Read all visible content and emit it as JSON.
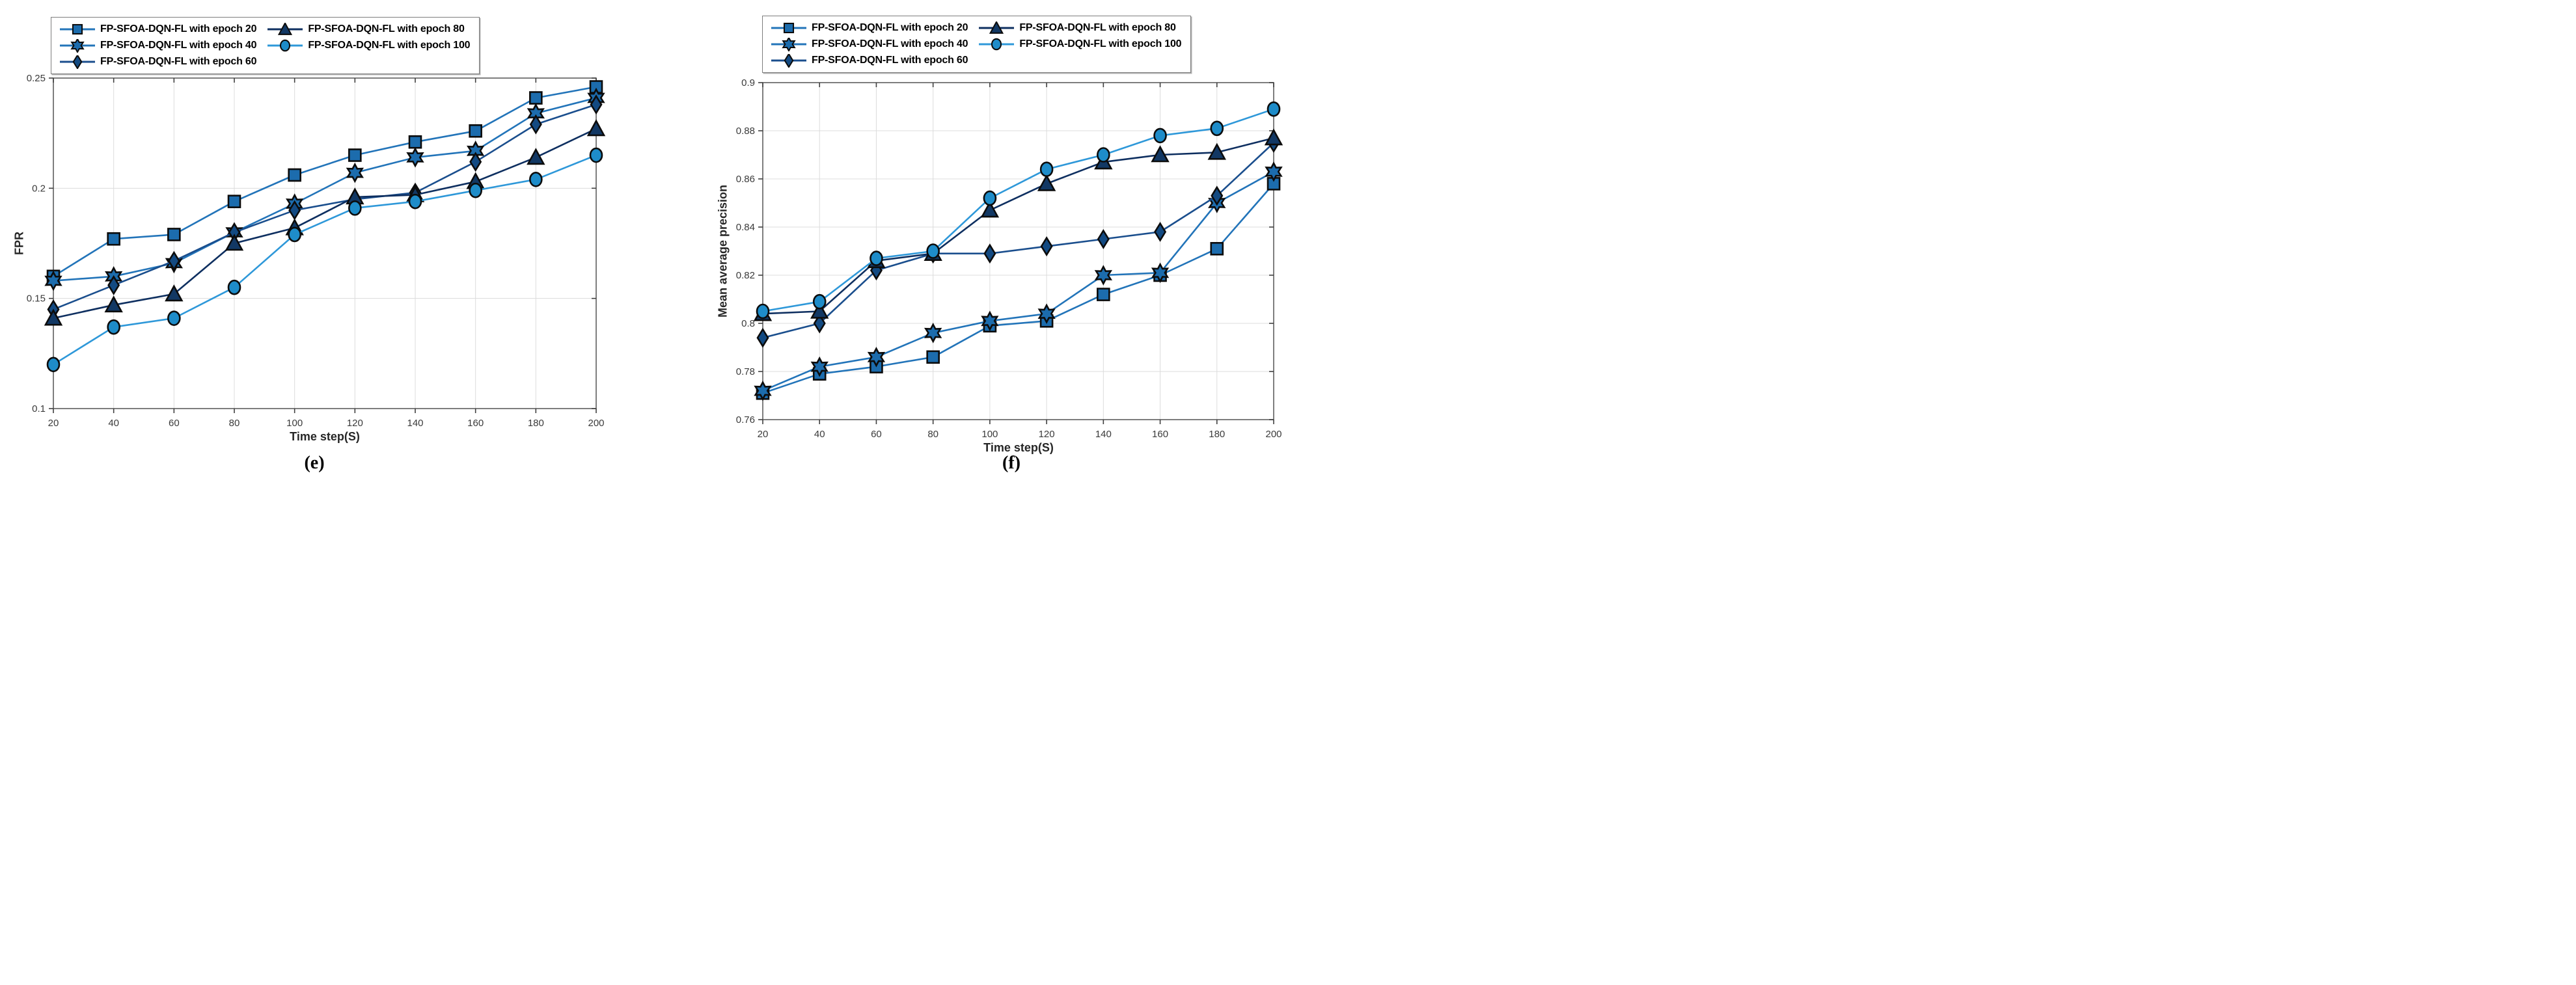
{
  "page": {
    "background": "#ffffff"
  },
  "legend": {
    "items": [
      {
        "label": "FP-SFOA-DQN-FL with epoch 20",
        "marker": "square",
        "line_color": "#2274b9",
        "marker_fill": "#1c6cad"
      },
      {
        "label": "FP-SFOA-DQN-FL with epoch 40",
        "marker": "hexagram",
        "line_color": "#2274b9",
        "marker_fill": "#1c6cad"
      },
      {
        "label": "FP-SFOA-DQN-FL with epoch 60",
        "marker": "diamond",
        "line_color": "#1a4e8d",
        "marker_fill": "#134a82"
      },
      {
        "label": "FP-SFOA-DQN-FL with epoch 80",
        "marker": "triangle",
        "line_color": "#0e2f60",
        "marker_fill": "#123864"
      },
      {
        "label": "FP-SFOA-DQN-FL with epoch 100",
        "marker": "circle",
        "line_color": "#2e98d9",
        "marker_fill": "#1e8cc9"
      }
    ]
  },
  "chart_data": [
    {
      "id": "e",
      "type": "line",
      "caption": "(e)",
      "title": "",
      "xlabel": "Time step(S)",
      "ylabel": "FPR",
      "x": [
        20,
        40,
        60,
        80,
        100,
        120,
        140,
        160,
        180,
        200
      ],
      "xlim": [
        20,
        200
      ],
      "ylim": [
        0.1,
        0.25
      ],
      "xtick_labels": [
        "20",
        "40",
        "60",
        "80",
        "100",
        "120",
        "140",
        "160",
        "180",
        "200"
      ],
      "yticks": [
        0.1,
        0.15,
        0.2,
        0.25
      ],
      "ytick_labels": [
        "0.1",
        "0.15",
        "0.2",
        "0.25"
      ],
      "grid": true,
      "legend_position": "top-left",
      "series": [
        {
          "name": "FP-SFOA-DQN-FL with epoch 20",
          "values": [
            0.16,
            0.177,
            0.179,
            0.194,
            0.206,
            0.215,
            0.221,
            0.226,
            0.241,
            0.246
          ]
        },
        {
          "name": "FP-SFOA-DQN-FL with epoch 40",
          "values": [
            0.158,
            0.16,
            0.166,
            0.18,
            0.193,
            0.207,
            0.214,
            0.217,
            0.234,
            0.241
          ]
        },
        {
          "name": "FP-SFOA-DQN-FL with epoch 60",
          "values": [
            0.145,
            0.156,
            0.167,
            0.18,
            0.19,
            0.195,
            0.198,
            0.212,
            0.229,
            0.238
          ]
        },
        {
          "name": "FP-SFOA-DQN-FL with epoch 80",
          "values": [
            0.141,
            0.147,
            0.152,
            0.175,
            0.182,
            0.196,
            0.197,
            0.203,
            0.214,
            0.227
          ]
        },
        {
          "name": "FP-SFOA-DQN-FL with epoch 100",
          "values": [
            0.12,
            0.137,
            0.141,
            0.155,
            0.179,
            0.191,
            0.194,
            0.199,
            0.204,
            0.215
          ]
        }
      ]
    },
    {
      "id": "f",
      "type": "line",
      "caption": "(f)",
      "title": "",
      "xlabel": "Time step(S)",
      "ylabel": "Mean average precision",
      "x": [
        20,
        40,
        60,
        80,
        100,
        120,
        140,
        160,
        180,
        200
      ],
      "xlim": [
        20,
        200
      ],
      "ylim": [
        0.76,
        0.9
      ],
      "xtick_labels": [
        "20",
        "40",
        "60",
        "80",
        "100",
        "120",
        "140",
        "160",
        "180",
        "200"
      ],
      "yticks": [
        0.76,
        0.78,
        0.8,
        0.82,
        0.84,
        0.86,
        0.88,
        0.9
      ],
      "ytick_labels": [
        "0.76",
        "0.78",
        "0.8",
        "0.82",
        "0.84",
        "0.86",
        "0.88",
        "0.9"
      ],
      "grid": true,
      "legend_position": "top-left",
      "series": [
        {
          "name": "FP-SFOA-DQN-FL with epoch 20",
          "values": [
            0.771,
            0.779,
            0.782,
            0.786,
            0.799,
            0.801,
            0.812,
            0.82,
            0.831,
            0.858
          ]
        },
        {
          "name": "FP-SFOA-DQN-FL with epoch 40",
          "values": [
            0.772,
            0.782,
            0.786,
            0.796,
            0.801,
            0.804,
            0.82,
            0.821,
            0.85,
            0.863
          ]
        },
        {
          "name": "FP-SFOA-DQN-FL with epoch 60",
          "values": [
            0.794,
            0.8,
            0.822,
            0.829,
            0.829,
            0.832,
            0.835,
            0.838,
            0.853,
            0.875
          ]
        },
        {
          "name": "FP-SFOA-DQN-FL with epoch 80",
          "values": [
            0.804,
            0.805,
            0.826,
            0.829,
            0.847,
            0.858,
            0.867,
            0.87,
            0.871,
            0.877
          ]
        },
        {
          "name": "FP-SFOA-DQN-FL with epoch 100",
          "values": [
            0.805,
            0.809,
            0.827,
            0.83,
            0.852,
            0.864,
            0.87,
            0.878,
            0.881,
            0.889
          ]
        }
      ]
    }
  ]
}
